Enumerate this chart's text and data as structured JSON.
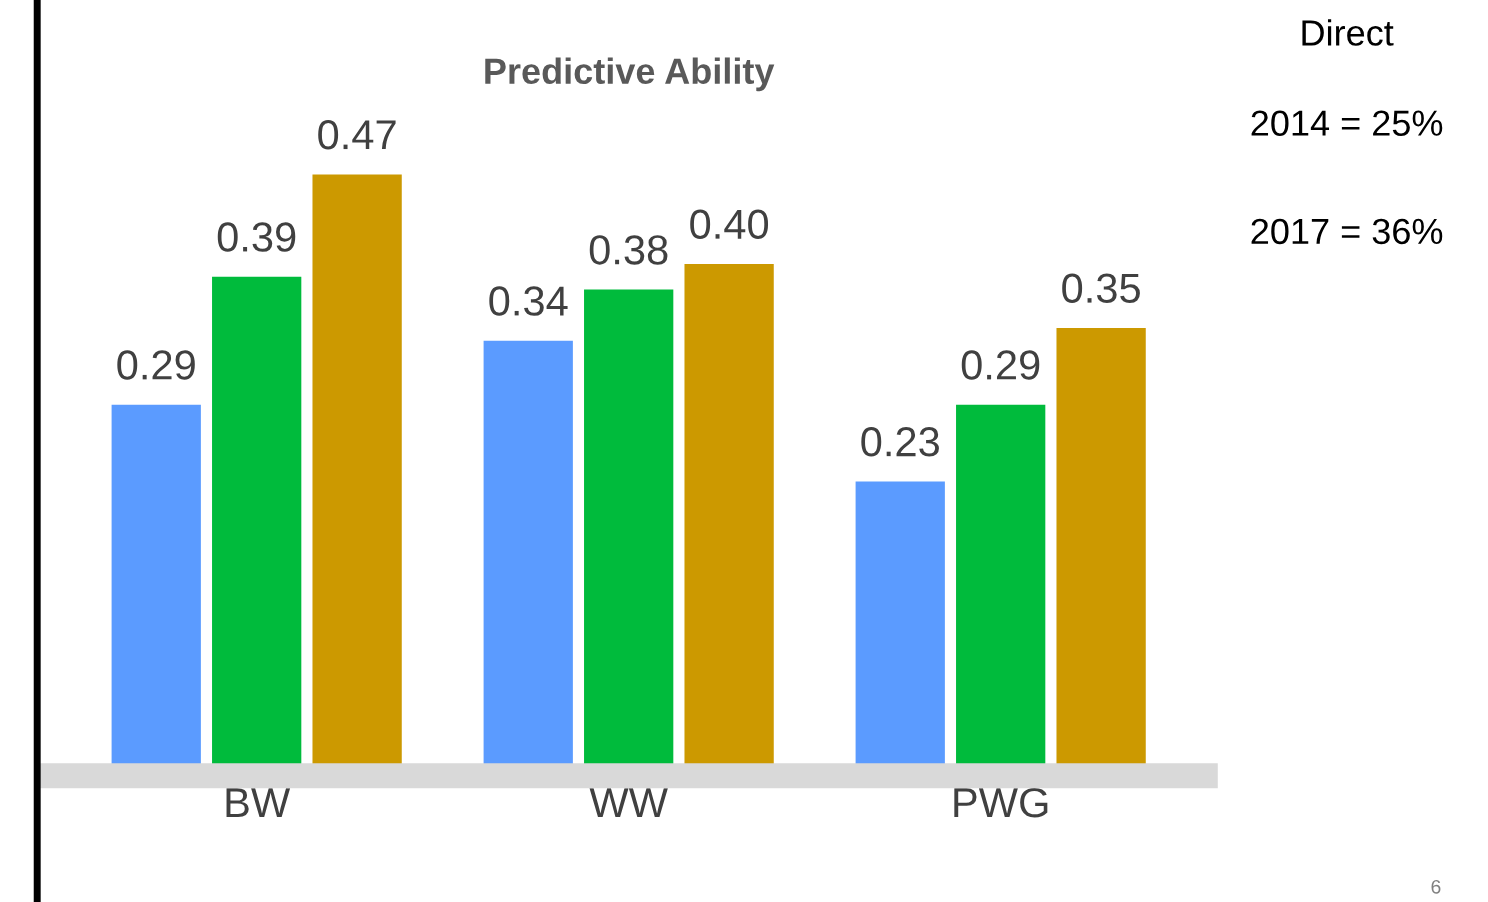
{
  "chart_data": {
    "type": "bar",
    "title": "Predictive Ability",
    "categories": [
      "BW",
      "WW",
      "PWG"
    ],
    "series": [
      {
        "color": "#5b9bff",
        "values": [
          0.29,
          0.34,
          0.23
        ],
        "value_labels": [
          "0.29",
          "0.34",
          "0.23"
        ]
      },
      {
        "color": "#00bb3c",
        "values": [
          0.39,
          0.38,
          0.29
        ],
        "value_labels": [
          "0.39",
          "0.38",
          "0.29"
        ]
      },
      {
        "color": "#cc9900",
        "values": [
          0.47,
          0.4,
          0.35
        ],
        "value_labels": [
          "0.47",
          "0.40",
          "0.35"
        ]
      }
    ],
    "annotations": [
      "Direct",
      "2014 = 25%",
      "2017 = 36%",
      "6"
    ],
    "legend": false,
    "grid": false
  }
}
